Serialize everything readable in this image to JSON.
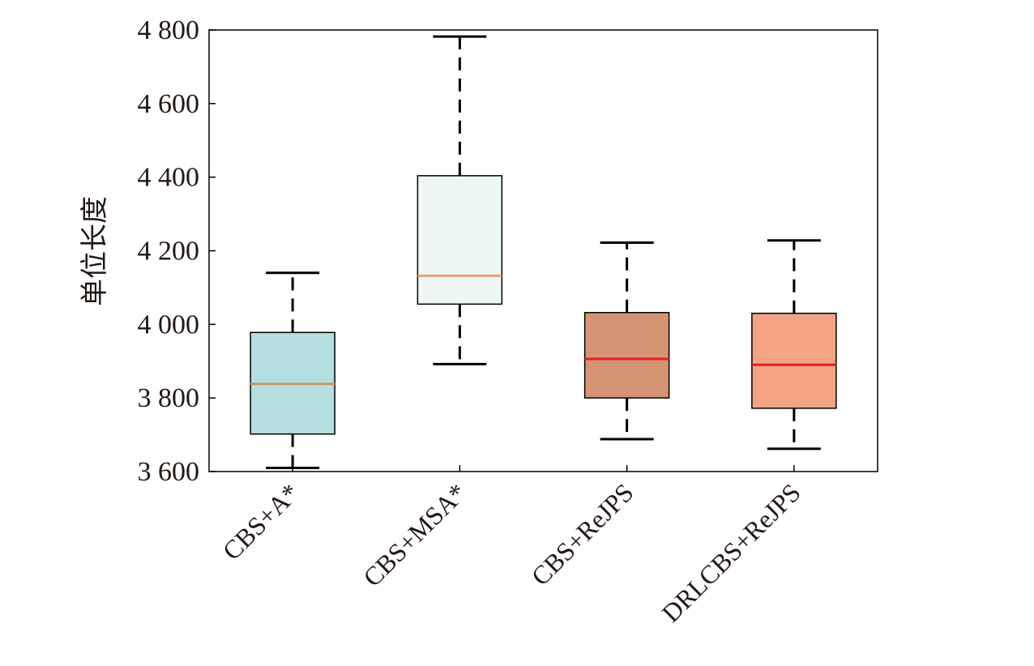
{
  "chart_data": {
    "type": "box",
    "title": "",
    "xlabel": "",
    "ylabel": "单位长度",
    "ylim": [
      3600,
      4800
    ],
    "yticks": [
      3600,
      3800,
      4000,
      4200,
      4400,
      4600,
      4800
    ],
    "ytick_labels": [
      "3 600",
      "3 800",
      "4 000",
      "4 200",
      "4 400",
      "4 600",
      "4 800"
    ],
    "grid": false,
    "categories": [
      "CBS+A*",
      "CBS+MSA*",
      "CBS+ReJPS",
      "DRLCBS+ReJPS"
    ],
    "boxes": [
      {
        "min": 3610,
        "q1": 3702,
        "median": 3838,
        "q3": 3978,
        "max": 4140,
        "fill": "#b5dfe0",
        "median_color": "#c9956b"
      },
      {
        "min": 3892,
        "q1": 4055,
        "median": 4132,
        "q3": 4404,
        "max": 4782,
        "fill": "#eef7f6",
        "median_color": "#e8a070"
      },
      {
        "min": 3688,
        "q1": 3800,
        "median": 3906,
        "q3": 4032,
        "max": 4222,
        "fill": "#d59474",
        "median_color": "#e5221d"
      },
      {
        "min": 3662,
        "q1": 3772,
        "median": 3890,
        "q3": 4030,
        "max": 4228,
        "fill": "#f2a485",
        "median_color": "#e5221d"
      }
    ]
  }
}
